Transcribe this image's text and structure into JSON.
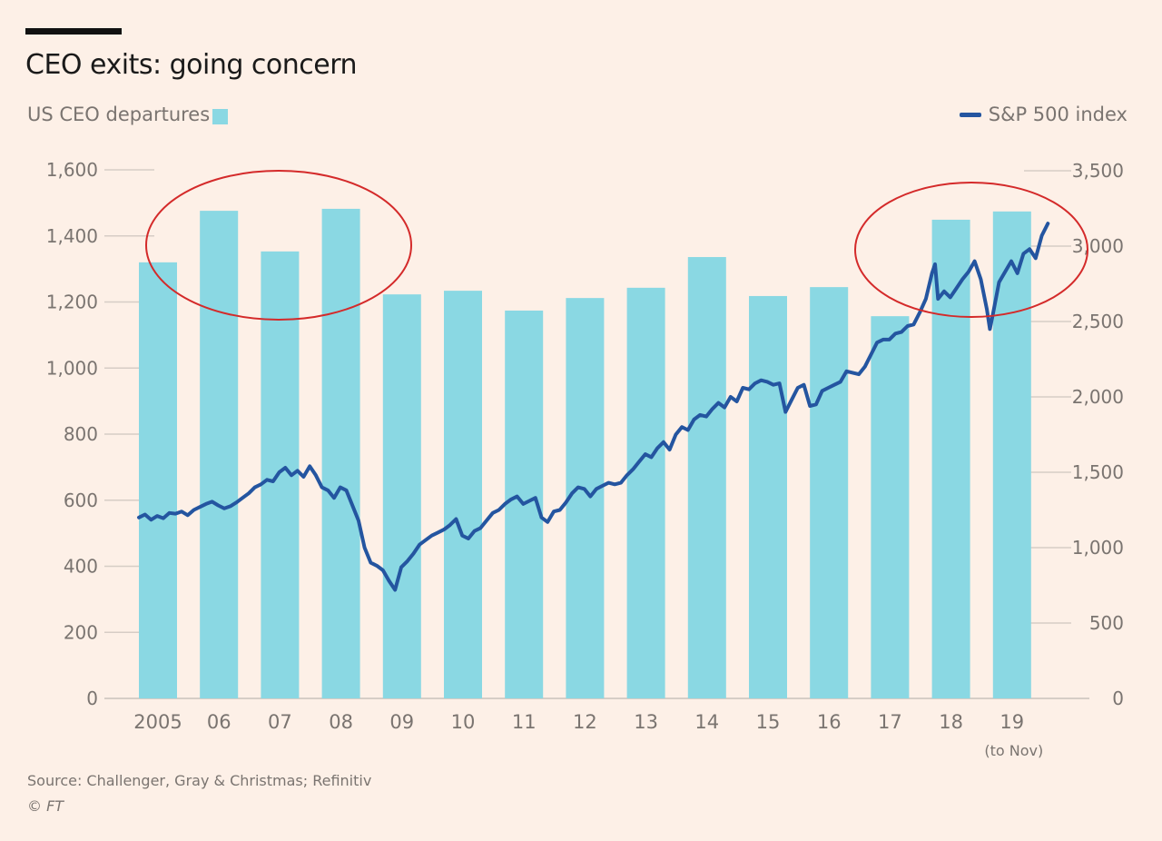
{
  "header": {
    "title": "CEO exits: going concern",
    "legend_left": "US CEO departures",
    "legend_right": "S&P 500 index"
  },
  "footer": {
    "source": "Source: Challenger, Gray & Christmas; Refinitiv",
    "copyright_symbol": "©",
    "copyright_owner": "FT"
  },
  "colors": {
    "background": "#fdf0e7",
    "bar": "#8ad8e3",
    "line": "#2455a0",
    "annotation": "#d42a2a",
    "axis_text": "#7a7470",
    "grid": "#d6cdc6"
  },
  "chart_data": {
    "type": "bar+line",
    "title": "CEO exits: going concern",
    "categories": [
      "2005",
      "06",
      "07",
      "08",
      "09",
      "10",
      "11",
      "12",
      "13",
      "14",
      "15",
      "16",
      "17",
      "18",
      "19"
    ],
    "category_sublabel": {
      "19": "(to Nov)"
    },
    "series": [
      {
        "name": "US CEO departures",
        "type": "bar",
        "axis": "left",
        "values": [
          1320,
          1476,
          1353,
          1482,
          1223,
          1234,
          1174,
          1212,
          1243,
          1336,
          1218,
          1245,
          1157,
          1449,
          1474
        ]
      },
      {
        "name": "S&P 500 index",
        "type": "line",
        "axis": "right",
        "x": [
          2005.0,
          2005.1,
          2005.2,
          2005.3,
          2005.4,
          2005.5,
          2005.6,
          2005.7,
          2005.8,
          2005.9,
          2006.0,
          2006.1,
          2006.2,
          2006.3,
          2006.4,
          2006.5,
          2006.6,
          2006.7,
          2006.8,
          2006.9,
          2007.0,
          2007.1,
          2007.2,
          2007.3,
          2007.4,
          2007.5,
          2007.6,
          2007.7,
          2007.8,
          2007.9,
          2008.0,
          2008.1,
          2008.2,
          2008.3,
          2008.4,
          2008.5,
          2008.6,
          2008.7,
          2008.8,
          2008.9,
          2009.0,
          2009.1,
          2009.2,
          2009.3,
          2009.4,
          2009.5,
          2009.6,
          2009.7,
          2009.8,
          2009.9,
          2010.0,
          2010.1,
          2010.2,
          2010.3,
          2010.4,
          2010.5,
          2010.6,
          2010.7,
          2010.8,
          2010.9,
          2011.0,
          2011.1,
          2011.2,
          2011.3,
          2011.4,
          2011.5,
          2011.6,
          2011.7,
          2011.8,
          2011.9,
          2012.0,
          2012.1,
          2012.2,
          2012.3,
          2012.4,
          2012.5,
          2012.6,
          2012.7,
          2012.8,
          2012.9,
          2013.0,
          2013.1,
          2013.2,
          2013.3,
          2013.4,
          2013.5,
          2013.6,
          2013.7,
          2013.8,
          2013.9,
          2014.0,
          2014.1,
          2014.2,
          2014.3,
          2014.4,
          2014.5,
          2014.6,
          2014.7,
          2014.8,
          2014.9,
          2015.0,
          2015.1,
          2015.2,
          2015.3,
          2015.4,
          2015.5,
          2015.6,
          2015.7,
          2015.8,
          2015.9,
          2016.0,
          2016.1,
          2016.2,
          2016.3,
          2016.4,
          2016.5,
          2016.6,
          2016.7,
          2016.8,
          2016.9,
          2017.0,
          2017.1,
          2017.2,
          2017.3,
          2017.4,
          2017.5,
          2017.6,
          2017.7,
          2017.8,
          2017.9,
          2018.0,
          2018.05,
          2018.1,
          2018.2,
          2018.3,
          2018.4,
          2018.5,
          2018.6,
          2018.7,
          2018.8,
          2018.9,
          2018.95,
          2019.0,
          2019.1,
          2019.2,
          2019.3,
          2019.4,
          2019.5,
          2019.6,
          2019.7,
          2019.8,
          2019.9
        ],
        "values": [
          1200,
          1220,
          1185,
          1210,
          1195,
          1230,
          1225,
          1240,
          1215,
          1250,
          1270,
          1290,
          1305,
          1280,
          1260,
          1275,
          1300,
          1330,
          1360,
          1400,
          1420,
          1450,
          1440,
          1500,
          1530,
          1480,
          1510,
          1470,
          1540,
          1480,
          1400,
          1380,
          1330,
          1400,
          1380,
          1280,
          1180,
          1000,
          900,
          880,
          850,
          780,
          720,
          870,
          910,
          960,
          1020,
          1050,
          1080,
          1100,
          1120,
          1150,
          1190,
          1080,
          1060,
          1110,
          1130,
          1180,
          1230,
          1250,
          1290,
          1320,
          1340,
          1290,
          1310,
          1330,
          1200,
          1170,
          1240,
          1250,
          1300,
          1360,
          1400,
          1390,
          1340,
          1390,
          1410,
          1430,
          1420,
          1430,
          1480,
          1520,
          1570,
          1620,
          1600,
          1660,
          1700,
          1650,
          1750,
          1800,
          1780,
          1850,
          1880,
          1870,
          1920,
          1960,
          1930,
          2000,
          1970,
          2060,
          2050,
          2090,
          2110,
          2100,
          2080,
          2090,
          1900,
          1980,
          2060,
          2080,
          1940,
          1950,
          2040,
          2060,
          2080,
          2100,
          2170,
          2160,
          2150,
          2200,
          2280,
          2360,
          2380,
          2380,
          2420,
          2430,
          2470,
          2480,
          2560,
          2650,
          2820,
          2880,
          2650,
          2700,
          2660,
          2720,
          2780,
          2830,
          2900,
          2780,
          2580,
          2450,
          2550,
          2760,
          2830,
          2900,
          2820,
          2950,
          2980,
          2920,
          3070,
          3150
        ]
      }
    ],
    "y_left": {
      "label": "US CEO departures",
      "range": [
        0,
        1600
      ],
      "ticks": [
        0,
        200,
        400,
        600,
        800,
        1000,
        1200,
        1400,
        1600
      ],
      "tick_labels": [
        "0",
        "200",
        "400",
        "600",
        "800",
        "1,000",
        "1,200",
        "1,400",
        "1,600"
      ]
    },
    "y_right": {
      "label": "S&P 500 index",
      "range": [
        0,
        3500
      ],
      "ticks": [
        0,
        500,
        1000,
        1500,
        2000,
        2500,
        3000,
        3500
      ],
      "tick_labels": [
        "0",
        "500",
        "1,000",
        "1,500",
        "2,000",
        "2,500",
        "3,000",
        "3,500"
      ]
    },
    "grid": false,
    "legend": {
      "left": "top-left",
      "right": "top-right"
    },
    "annotations": [
      {
        "type": "ellipse",
        "label": "highlight 2006–2008 departures"
      },
      {
        "type": "ellipse",
        "label": "highlight 2018–2019 index peak"
      }
    ]
  }
}
